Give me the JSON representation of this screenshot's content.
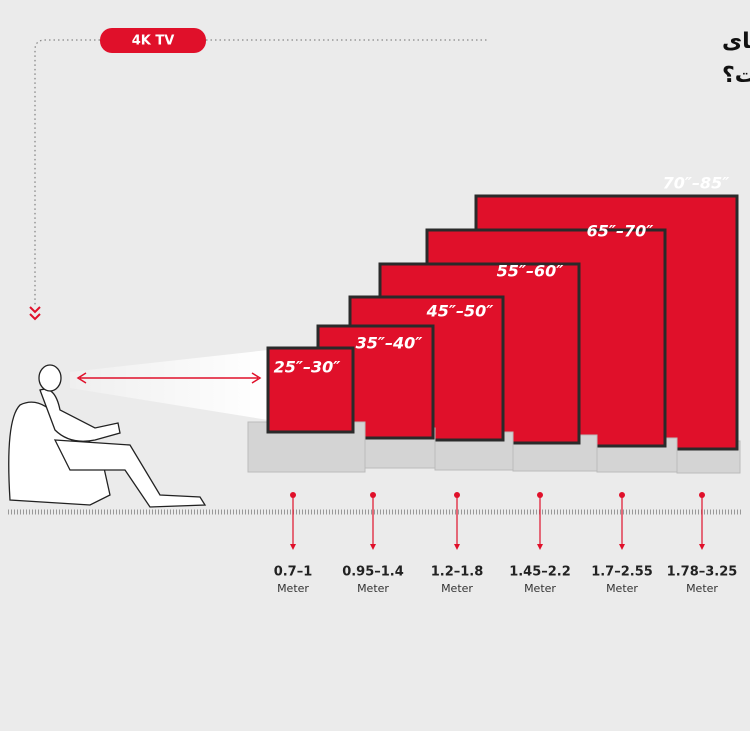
{
  "badge": "4K TV",
  "title": [
    "بهترین فاصله تماشای",
    "تلویزیون چند متراست؟"
  ],
  "tvs": [
    {
      "label": "25″–30″"
    },
    {
      "label": "35″–40″"
    },
    {
      "label": "45″–50″"
    },
    {
      "label": "55″–60″"
    },
    {
      "label": "65″–70″"
    },
    {
      "label": "70″–85″"
    }
  ],
  "distances": [
    {
      "range": "0.7–1",
      "unit": "Meter"
    },
    {
      "range": "0.95–1.4",
      "unit": "Meter"
    },
    {
      "range": "1.2–1.8",
      "unit": "Meter"
    },
    {
      "range": "1.45–2.2",
      "unit": "Meter"
    },
    {
      "range": "1.7–2.55",
      "unit": "Meter"
    },
    {
      "range": "1.78–3.25",
      "unit": "Meter"
    }
  ]
}
